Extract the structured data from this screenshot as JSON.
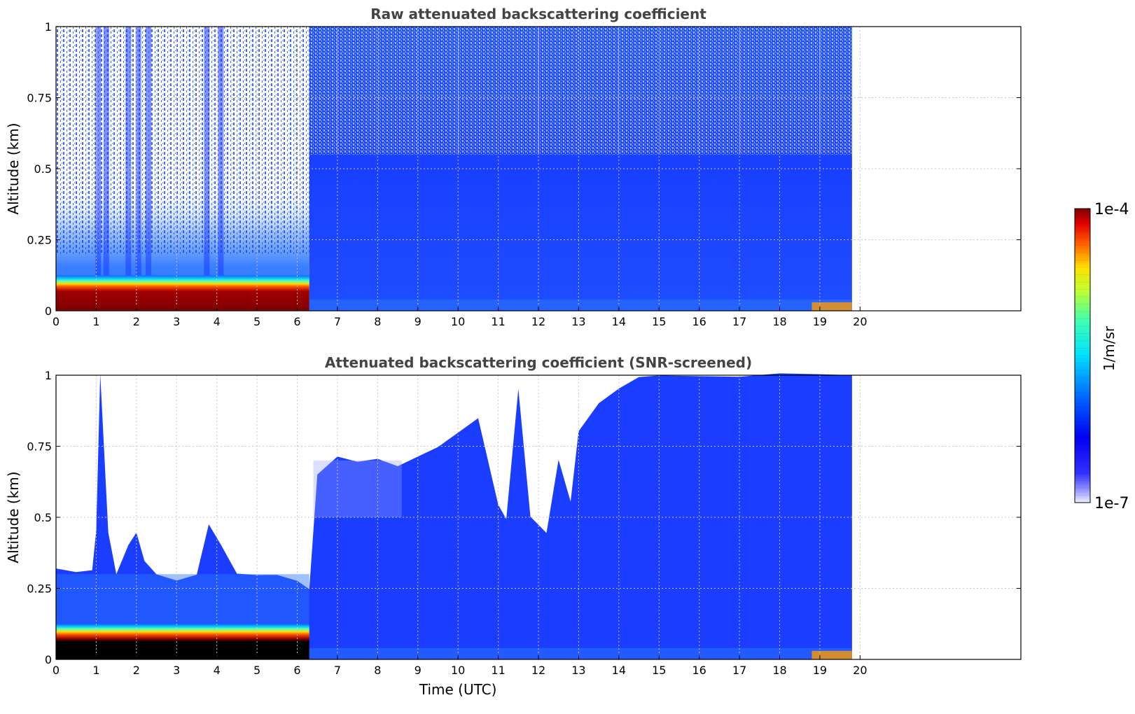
{
  "colors": {
    "cloud_dark": "#7f0000",
    "screened_black": "#000000",
    "background_blue": "#1a3dff",
    "light_blue": "#2a6bff",
    "cyan": "#00d4ff",
    "grid": "#c8c8c8"
  },
  "chart_data": [
    {
      "type": "heatmap",
      "title": "Raw attenuated backscattering coefficient",
      "xlabel": "",
      "ylabel": "Altitude (km)",
      "xlim": [
        0,
        24
      ],
      "ylim": [
        0,
        1
      ],
      "xticks": [
        0,
        1,
        2,
        3,
        4,
        5,
        6,
        7,
        8,
        9,
        10,
        11,
        12,
        13,
        14,
        15,
        16,
        17,
        18,
        19,
        20
      ],
      "xtick_labels": [
        "0",
        "1",
        "2",
        "3",
        "4",
        "5",
        "6",
        "7",
        "8",
        "9",
        "10",
        "11",
        "12",
        "13",
        "14",
        "15",
        "16",
        "17",
        "18",
        "19",
        "20"
      ],
      "yticks": [
        0,
        0.25,
        0.5,
        0.75,
        1
      ],
      "ytick_labels": [
        "0",
        "0.25",
        "0.5",
        "0.75",
        "1"
      ],
      "grid": true,
      "data_end_time": 19.8,
      "low_layer_top_km": 0.1,
      "low_layer_end_time": 6.3
    },
    {
      "type": "heatmap",
      "title": "Attenuated backscattering coefficient (SNR-screened)",
      "xlabel": "Time (UTC)",
      "ylabel": "Altitude (km)",
      "xlim": [
        0,
        24
      ],
      "ylim": [
        0,
        1
      ],
      "xticks": [
        0,
        1,
        2,
        3,
        4,
        5,
        6,
        7,
        8,
        9,
        10,
        11,
        12,
        13,
        14,
        15,
        16,
        17,
        18,
        19,
        20
      ],
      "xtick_labels": [
        "0",
        "1",
        "2",
        "3",
        "4",
        "5",
        "6",
        "7",
        "8",
        "9",
        "10",
        "11",
        "12",
        "13",
        "14",
        "15",
        "16",
        "17",
        "18",
        "19",
        "20"
      ],
      "yticks": [
        0,
        0.25,
        0.5,
        0.75,
        1
      ],
      "ytick_labels": [
        "0",
        "0.25",
        "0.5",
        "0.75",
        "1"
      ],
      "grid": true,
      "data_end_time": 19.8,
      "screen_boundary": {
        "times": [
          0,
          0.5,
          0.9,
          1.0,
          1.1,
          1.3,
          1.5,
          1.8,
          2.0,
          2.2,
          2.5,
          3.0,
          3.5,
          3.8,
          4.1,
          4.5,
          5.0,
          5.5,
          6.0,
          6.3,
          6.5,
          7.0,
          7.5,
          8.0,
          8.5,
          9.0,
          9.5,
          10.0,
          10.5,
          11.0,
          11.2,
          11.5,
          11.8,
          12.2,
          12.5,
          12.8,
          13.0,
          13.5,
          14.0,
          14.5,
          15.0,
          16.0,
          17.0,
          18.0,
          19.0,
          19.8
        ],
        "altitude_km": [
          0.32,
          0.3,
          0.32,
          0.45,
          1.0,
          0.45,
          0.3,
          0.4,
          0.45,
          0.35,
          0.3,
          0.28,
          0.3,
          0.48,
          0.4,
          0.3,
          0.3,
          0.3,
          0.27,
          0.25,
          0.65,
          0.72,
          0.7,
          0.7,
          0.68,
          0.72,
          0.75,
          0.8,
          0.85,
          0.55,
          0.5,
          0.95,
          0.5,
          0.45,
          0.7,
          0.55,
          0.8,
          0.9,
          0.95,
          1.0,
          1.0,
          1.0,
          1.0,
          1.0,
          1.0,
          1.0
        ]
      }
    }
  ],
  "colorbar": {
    "max_label": "1e-4",
    "min_label": "1e-7",
    "unit_label": "1/m/sr",
    "vmin": 1e-07,
    "vmax": 0.0001,
    "scale": "log",
    "colormap": "jet"
  }
}
